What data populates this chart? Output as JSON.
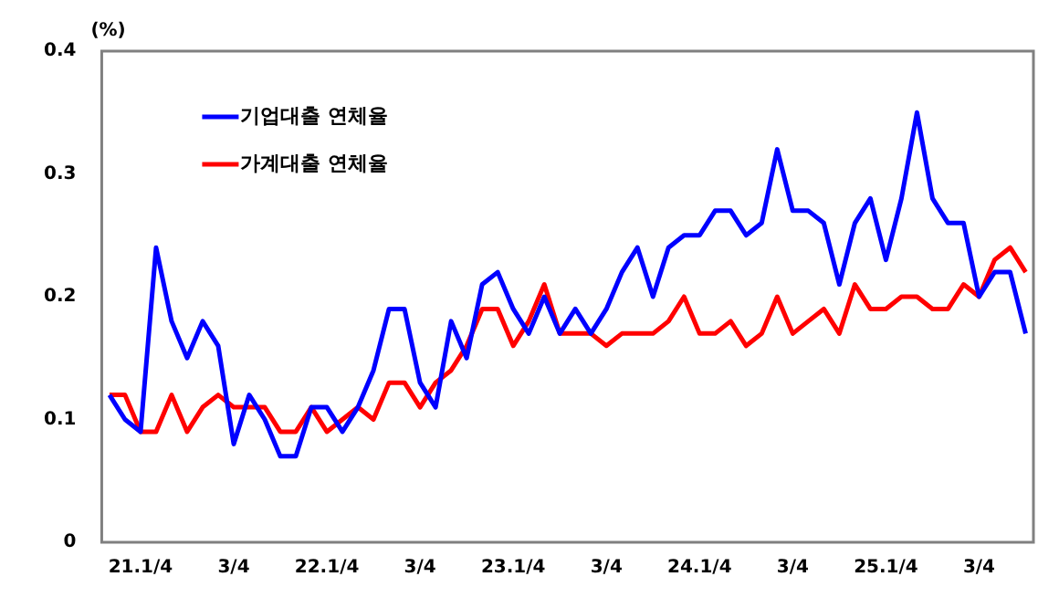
{
  "chart_data": {
    "type": "line",
    "ylabel": "(%)",
    "categories": [
      null,
      null,
      "21.1/4",
      null,
      null,
      null,
      null,
      null,
      "3/4",
      null,
      null,
      null,
      null,
      null,
      "22.1/4",
      null,
      null,
      null,
      null,
      null,
      "3/4",
      null,
      null,
      null,
      null,
      null,
      "23.1/4",
      null,
      null,
      null,
      null,
      null,
      "3/4",
      null,
      null,
      null,
      null,
      null,
      "24.1/4",
      null,
      null,
      null,
      null,
      null,
      "3/4",
      null,
      null,
      null,
      null,
      null,
      "25.1/4",
      null,
      null,
      null,
      null,
      null,
      "3/4",
      null,
      null,
      null
    ],
    "series": [
      {
        "name": "기업대출 연체율",
        "color": "#0000ff",
        "values": [
          0.12,
          0.1,
          0.09,
          0.24,
          0.18,
          0.15,
          0.18,
          0.16,
          0.08,
          0.12,
          0.1,
          0.07,
          0.07,
          0.11,
          0.11,
          0.09,
          0.11,
          0.14,
          0.19,
          0.19,
          0.13,
          0.11,
          0.18,
          0.15,
          0.21,
          0.22,
          0.19,
          0.17,
          0.2,
          0.17,
          0.19,
          0.17,
          0.19,
          0.22,
          0.24,
          0.2,
          0.24,
          0.25,
          0.25,
          0.27,
          0.27,
          0.25,
          0.26,
          0.32,
          0.27,
          0.27,
          0.26,
          0.21,
          0.26,
          0.28,
          0.23,
          0.28,
          0.35,
          0.28,
          0.26,
          0.26,
          0.2,
          0.22,
          0.22,
          0.17
        ]
      },
      {
        "name": "가계대출 연체율",
        "color": "#ff0000",
        "values": [
          0.12,
          0.12,
          0.09,
          0.09,
          0.12,
          0.09,
          0.11,
          0.12,
          0.11,
          0.11,
          0.11,
          0.09,
          0.09,
          0.11,
          0.09,
          0.1,
          0.11,
          0.1,
          0.13,
          0.13,
          0.11,
          0.13,
          0.14,
          0.16,
          0.19,
          0.19,
          0.16,
          0.18,
          0.21,
          0.17,
          0.17,
          0.17,
          0.16,
          0.17,
          0.17,
          0.17,
          0.18,
          0.2,
          0.17,
          0.17,
          0.18,
          0.16,
          0.17,
          0.2,
          0.17,
          0.18,
          0.19,
          0.17,
          0.21,
          0.19,
          0.19,
          0.2,
          0.2,
          0.19,
          0.19,
          0.21,
          0.2,
          0.23,
          0.24,
          0.22
        ]
      }
    ],
    "ylim": [
      0,
      0.4
    ],
    "yticks": [
      0,
      0.1,
      0.2,
      0.3,
      0.4
    ],
    "grid": false,
    "legend": "top left",
    "marker": "none",
    "line_style": "solid"
  }
}
